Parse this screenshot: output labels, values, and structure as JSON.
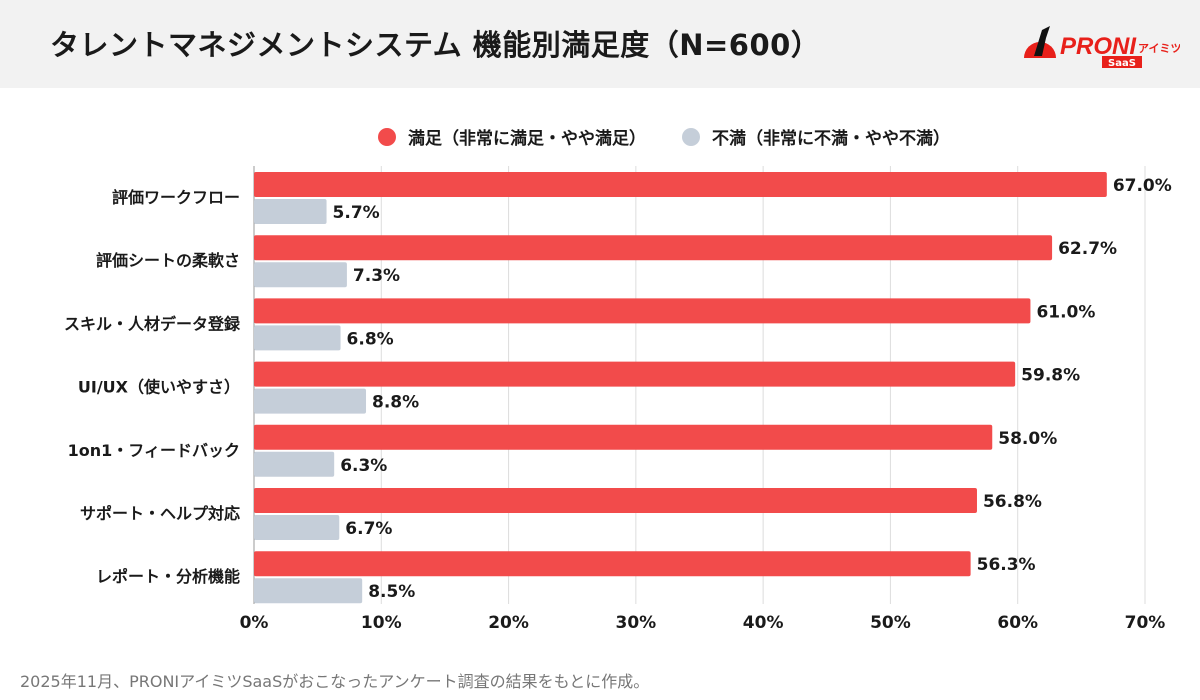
{
  "header": {
    "title": "タレントマネジメントシステム 機能別満足度（N=600）",
    "logo_text": "PRONIアイミツ SaaS"
  },
  "footer": {
    "note": "2025年11月、PRONIアイミツSaaSがおこなったアンケート調査の結果をもとに作成。"
  },
  "chart_data": {
    "type": "bar",
    "orientation": "horizontal",
    "title": "タレントマネジメントシステム 機能別満足度（N=600）",
    "categories": [
      "評価ワークフロー",
      "評価シートの柔軟さ",
      "スキル・人材データ登録",
      "UI/UX（使いやすさ）",
      "1on1・フィードバック",
      "サポート・ヘルプ対応",
      "レポート・分析機能"
    ],
    "series": [
      {
        "name": "満足（非常に満足・やや満足）",
        "color": "#f24b4b",
        "values": [
          67.0,
          62.7,
          61.0,
          59.8,
          58.0,
          56.8,
          56.3
        ]
      },
      {
        "name": "不満（非常に不満・やや不満）",
        "color": "#c5ced9",
        "values": [
          5.7,
          7.3,
          6.8,
          8.8,
          6.3,
          6.7,
          8.5
        ]
      }
    ],
    "xlim": [
      0,
      70
    ],
    "xticks": [
      "0%",
      "10%",
      "20%",
      "30%",
      "40%",
      "50%",
      "60%",
      "70%"
    ],
    "grid": true,
    "legend": "top"
  }
}
